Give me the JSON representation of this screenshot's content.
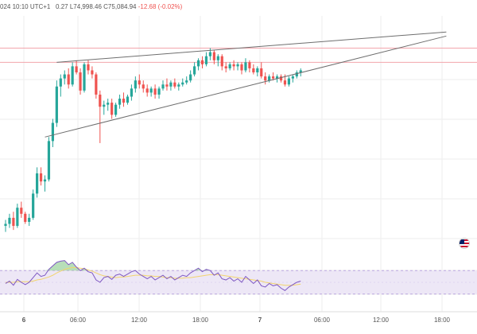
{
  "header": {
    "datetime": "024 10:10 UTC+1",
    "ohlc_open_fragment": "0.27",
    "ohlc_low": "L74,998.46",
    "ohlc_close": "C75,084.94",
    "ohlc_change": "-12.68 (-0.02%)"
  },
  "colors": {
    "up": "#26a69a",
    "down": "#ef5350",
    "trendline": "#6e6e6e",
    "price_level_line": "#f2a5ac",
    "rsi_line": "#7e57c2",
    "rsi_ma": "#f2d46e",
    "rsi_band": "#ede7f6",
    "rsi_overbought_fill": "#a5d6a7",
    "grid": "#eeeeee"
  },
  "icons": {
    "flag": "uk-flag-icon"
  },
  "chart_data": {
    "type": "candlestick",
    "title": "",
    "xlabel": "",
    "ylabel": "",
    "x_ticks": [
      "6",
      "06:00",
      "12:00",
      "18:00",
      "7",
      "06:00",
      "12:00",
      "18:00"
    ],
    "y_labels_visible": false,
    "ylim": [
      0,
      100
    ],
    "grid": true,
    "candles": [
      {
        "o": 11,
        "h": 14,
        "l": 8,
        "c": 12
      },
      {
        "o": 12,
        "h": 17,
        "l": 10,
        "c": 15
      },
      {
        "o": 15,
        "h": 18,
        "l": 9,
        "c": 11
      },
      {
        "o": 11,
        "h": 22,
        "l": 10,
        "c": 20
      },
      {
        "o": 20,
        "h": 23,
        "l": 15,
        "c": 17
      },
      {
        "o": 17,
        "h": 18,
        "l": 12,
        "c": 13
      },
      {
        "o": 13,
        "h": 17,
        "l": 11,
        "c": 15
      },
      {
        "o": 15,
        "h": 29,
        "l": 14,
        "c": 27
      },
      {
        "o": 27,
        "h": 40,
        "l": 25,
        "c": 37
      },
      {
        "o": 37,
        "h": 40,
        "l": 31,
        "c": 33
      },
      {
        "o": 33,
        "h": 36,
        "l": 28,
        "c": 34
      },
      {
        "o": 34,
        "h": 55,
        "l": 33,
        "c": 53
      },
      {
        "o": 53,
        "h": 64,
        "l": 50,
        "c": 62
      },
      {
        "o": 62,
        "h": 83,
        "l": 60,
        "c": 80
      },
      {
        "o": 80,
        "h": 86,
        "l": 75,
        "c": 84
      },
      {
        "o": 84,
        "h": 88,
        "l": 81,
        "c": 86
      },
      {
        "o": 86,
        "h": 89,
        "l": 79,
        "c": 81
      },
      {
        "o": 81,
        "h": 92,
        "l": 80,
        "c": 90
      },
      {
        "o": 90,
        "h": 93,
        "l": 86,
        "c": 87
      },
      {
        "o": 87,
        "h": 89,
        "l": 76,
        "c": 78
      },
      {
        "o": 78,
        "h": 92,
        "l": 77,
        "c": 91
      },
      {
        "o": 91,
        "h": 93,
        "l": 86,
        "c": 88
      },
      {
        "o": 88,
        "h": 90,
        "l": 84,
        "c": 86
      },
      {
        "o": 86,
        "h": 87,
        "l": 74,
        "c": 76
      },
      {
        "o": 76,
        "h": 78,
        "l": 52,
        "c": 70
      },
      {
        "o": 70,
        "h": 73,
        "l": 66,
        "c": 71
      },
      {
        "o": 71,
        "h": 74,
        "l": 68,
        "c": 72
      },
      {
        "o": 72,
        "h": 74,
        "l": 64,
        "c": 66
      },
      {
        "o": 66,
        "h": 72,
        "l": 65,
        "c": 71
      },
      {
        "o": 71,
        "h": 76,
        "l": 69,
        "c": 74
      },
      {
        "o": 74,
        "h": 77,
        "l": 70,
        "c": 72
      },
      {
        "o": 72,
        "h": 76,
        "l": 71,
        "c": 75
      },
      {
        "o": 75,
        "h": 81,
        "l": 73,
        "c": 79
      },
      {
        "o": 79,
        "h": 85,
        "l": 77,
        "c": 83
      },
      {
        "o": 83,
        "h": 86,
        "l": 79,
        "c": 81
      },
      {
        "o": 81,
        "h": 83,
        "l": 77,
        "c": 79
      },
      {
        "o": 79,
        "h": 81,
        "l": 75,
        "c": 77
      },
      {
        "o": 77,
        "h": 80,
        "l": 75,
        "c": 79
      },
      {
        "o": 79,
        "h": 81,
        "l": 74,
        "c": 76
      },
      {
        "o": 76,
        "h": 80,
        "l": 74,
        "c": 79
      },
      {
        "o": 79,
        "h": 83,
        "l": 78,
        "c": 81
      },
      {
        "o": 81,
        "h": 84,
        "l": 78,
        "c": 80
      },
      {
        "o": 80,
        "h": 83,
        "l": 78,
        "c": 82
      },
      {
        "o": 82,
        "h": 84,
        "l": 79,
        "c": 80
      },
      {
        "o": 80,
        "h": 82,
        "l": 78,
        "c": 81
      },
      {
        "o": 81,
        "h": 84,
        "l": 80,
        "c": 82
      },
      {
        "o": 82,
        "h": 85,
        "l": 81,
        "c": 83
      },
      {
        "o": 83,
        "h": 88,
        "l": 82,
        "c": 86
      },
      {
        "o": 86,
        "h": 92,
        "l": 85,
        "c": 90
      },
      {
        "o": 90,
        "h": 94,
        "l": 88,
        "c": 93
      },
      {
        "o": 93,
        "h": 95,
        "l": 89,
        "c": 91
      },
      {
        "o": 91,
        "h": 97,
        "l": 90,
        "c": 95
      },
      {
        "o": 95,
        "h": 99,
        "l": 93,
        "c": 97
      },
      {
        "o": 97,
        "h": 98,
        "l": 91,
        "c": 93
      },
      {
        "o": 93,
        "h": 96,
        "l": 90,
        "c": 95
      },
      {
        "o": 95,
        "h": 96,
        "l": 88,
        "c": 90
      },
      {
        "o": 90,
        "h": 92,
        "l": 87,
        "c": 89
      },
      {
        "o": 89,
        "h": 92,
        "l": 88,
        "c": 91
      },
      {
        "o": 91,
        "h": 93,
        "l": 88,
        "c": 90
      },
      {
        "o": 90,
        "h": 92,
        "l": 88,
        "c": 91
      },
      {
        "o": 91,
        "h": 92,
        "l": 86,
        "c": 88
      },
      {
        "o": 88,
        "h": 94,
        "l": 87,
        "c": 92
      },
      {
        "o": 92,
        "h": 93,
        "l": 87,
        "c": 89
      },
      {
        "o": 89,
        "h": 91,
        "l": 86,
        "c": 87
      },
      {
        "o": 87,
        "h": 90,
        "l": 85,
        "c": 89
      },
      {
        "o": 89,
        "h": 92,
        "l": 84,
        "c": 85
      },
      {
        "o": 85,
        "h": 87,
        "l": 81,
        "c": 83
      },
      {
        "o": 83,
        "h": 86,
        "l": 82,
        "c": 85
      },
      {
        "o": 85,
        "h": 87,
        "l": 83,
        "c": 84
      },
      {
        "o": 84,
        "h": 86,
        "l": 82,
        "c": 85
      },
      {
        "o": 85,
        "h": 86,
        "l": 82,
        "c": 83
      },
      {
        "o": 83,
        "h": 86,
        "l": 80,
        "c": 81
      },
      {
        "o": 81,
        "h": 85,
        "l": 80,
        "c": 84
      },
      {
        "o": 84,
        "h": 86,
        "l": 82,
        "c": 85
      },
      {
        "o": 85,
        "h": 88,
        "l": 84,
        "c": 87
      },
      {
        "o": 87,
        "h": 89,
        "l": 85,
        "c": 88
      }
    ],
    "price_level_lines": [
      99,
      92
    ],
    "trendlines": [
      {
        "name": "upper",
        "points": [
          [
            13,
            92
          ],
          [
            112,
            107
          ]
        ]
      },
      {
        "name": "lower",
        "points": [
          [
            10,
            55
          ],
          [
            112,
            105
          ]
        ]
      }
    ],
    "rsi": {
      "band_lo": 30,
      "band_hi": 70,
      "values": [
        48,
        52,
        45,
        55,
        50,
        46,
        50,
        58,
        66,
        60,
        62,
        72,
        78,
        84,
        86,
        87,
        80,
        84,
        76,
        70,
        74,
        68,
        66,
        54,
        50,
        58,
        60,
        55,
        62,
        64,
        60,
        64,
        68,
        70,
        64,
        60,
        56,
        60,
        54,
        58,
        62,
        56,
        60,
        54,
        58,
        62,
        60,
        66,
        70,
        74,
        68,
        72,
        70,
        62,
        66,
        56,
        54,
        58,
        52,
        56,
        50,
        60,
        54,
        48,
        54,
        44,
        42,
        48,
        44,
        46,
        40,
        36,
        42,
        46,
        50,
        52
      ],
      "ma": [
        50,
        50,
        50,
        51,
        51,
        51,
        51,
        52,
        54,
        55,
        57,
        59,
        62,
        66,
        69,
        72,
        74,
        75,
        75,
        74,
        73,
        71,
        69,
        66,
        63,
        61,
        60,
        59,
        58,
        59,
        59,
        60,
        61,
        62,
        62,
        62,
        61,
        61,
        60,
        60,
        59,
        58,
        58,
        57,
        57,
        57,
        58,
        58,
        59,
        60,
        61,
        62,
        63,
        63,
        63,
        62,
        61,
        60,
        59,
        58,
        57,
        56,
        55,
        54,
        53,
        52,
        50,
        49,
        48,
        47,
        46,
        45,
        45,
        45,
        46,
        47
      ]
    }
  }
}
